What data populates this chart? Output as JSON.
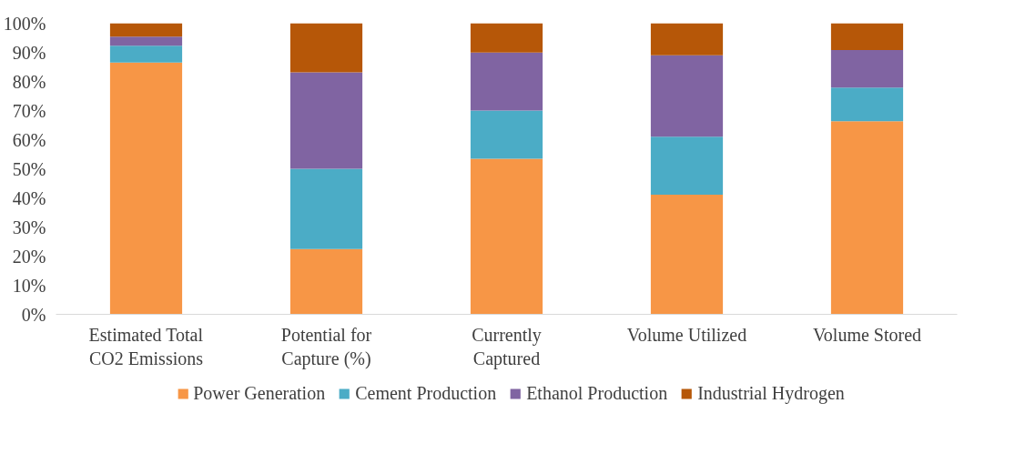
{
  "chart_data": {
    "type": "bar",
    "stacked": true,
    "categories": [
      "Estimated Total CO2 Emissions",
      "Potential for Capture (%)",
      "Currently Captured",
      "Volume Utilized",
      "Volume Stored"
    ],
    "series": [
      {
        "name": "Power Generation",
        "color": "#f79646",
        "values": [
          86.5,
          22.4,
          53.4,
          41.1,
          66.3
        ]
      },
      {
        "name": "Cement Production",
        "color": "#4bacc6",
        "values": [
          5.8,
          27.6,
          16.6,
          19.9,
          11.6
        ]
      },
      {
        "name": "Ethanol Production",
        "color": "#8064a2",
        "values": [
          3.1,
          33.1,
          19.9,
          28.0,
          12.9
        ]
      },
      {
        "name": "Industrial Hydrogen",
        "color": "#b65708",
        "values": [
          4.6,
          16.9,
          10.1,
          11.0,
          9.2
        ]
      }
    ],
    "ylim": [
      0,
      100
    ],
    "yticks": [
      {
        "value": 0,
        "label": "0%"
      },
      {
        "value": 10,
        "label": "10%"
      },
      {
        "value": 20,
        "label": "20%"
      },
      {
        "value": 30,
        "label": "30%"
      },
      {
        "value": 40,
        "label": "40%"
      },
      {
        "value": 50,
        "label": "50%"
      },
      {
        "value": 60,
        "label": "60%"
      },
      {
        "value": 70,
        "label": "70%"
      },
      {
        "value": 80,
        "label": "80%"
      },
      {
        "value": 90,
        "label": "90%"
      },
      {
        "value": 100,
        "label": "100%"
      }
    ],
    "grid": false,
    "legend": "bottom"
  }
}
